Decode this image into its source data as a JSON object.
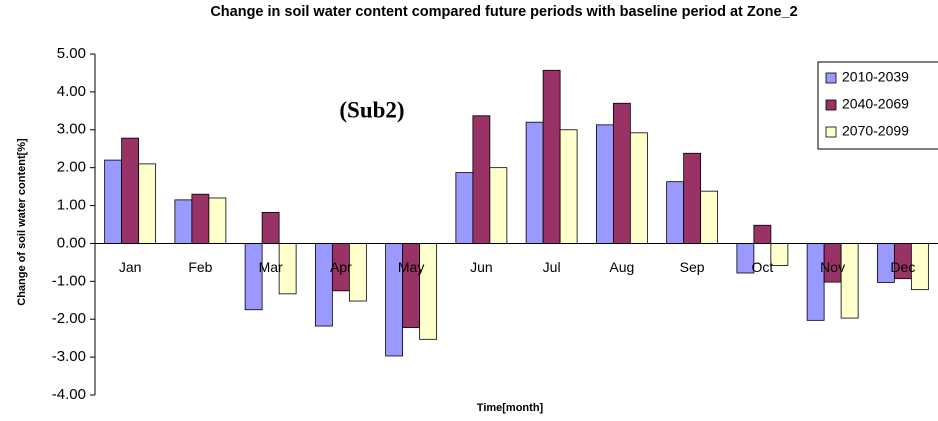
{
  "chart_data": {
    "type": "bar",
    "title": "Change in soil water content compared future periods with baseline period at Zone_2",
    "y_label": "Change of soil water content[%]",
    "x_label": "Time[month]",
    "annotation": "(Sub2)",
    "categories": [
      "Jan",
      "Feb",
      "Mar",
      "Apr",
      "May",
      "Jun",
      "Jul",
      "Aug",
      "Sep",
      "Oct",
      "Nov",
      "Dec"
    ],
    "series": [
      {
        "name": "2010-2039",
        "color": "#9999ff",
        "values": [
          2.2,
          1.15,
          -1.75,
          -2.18,
          -2.97,
          1.87,
          3.2,
          3.13,
          1.63,
          -0.78,
          -2.03,
          -1.03
        ]
      },
      {
        "name": "2040-2069",
        "color": "#993366",
        "values": [
          2.78,
          1.3,
          0.82,
          -1.25,
          -2.22,
          3.37,
          4.57,
          3.7,
          2.38,
          0.48,
          -1.02,
          -0.93
        ]
      },
      {
        "name": "2070-2099",
        "color": "#ffffcc",
        "values": [
          2.1,
          1.2,
          -1.33,
          -1.52,
          -2.53,
          2.0,
          3.0,
          2.92,
          1.38,
          -0.58,
          -1.97,
          -1.22
        ]
      }
    ],
    "ylim": [
      -4,
      5
    ],
    "yticks": [
      {
        "value": -4,
        "label": "-4.00"
      },
      {
        "value": -3,
        "label": "-3.00"
      },
      {
        "value": -2,
        "label": "-2.00"
      },
      {
        "value": -1,
        "label": "-1.00"
      },
      {
        "value": 0,
        "label": "0.00"
      },
      {
        "value": 1,
        "label": "1.00"
      },
      {
        "value": 2,
        "label": "2.00"
      },
      {
        "value": 3,
        "label": "3.00"
      },
      {
        "value": 4,
        "label": "4.00"
      },
      {
        "value": 5,
        "label": "5.00"
      }
    ],
    "grid": false,
    "legend": "upper right"
  }
}
